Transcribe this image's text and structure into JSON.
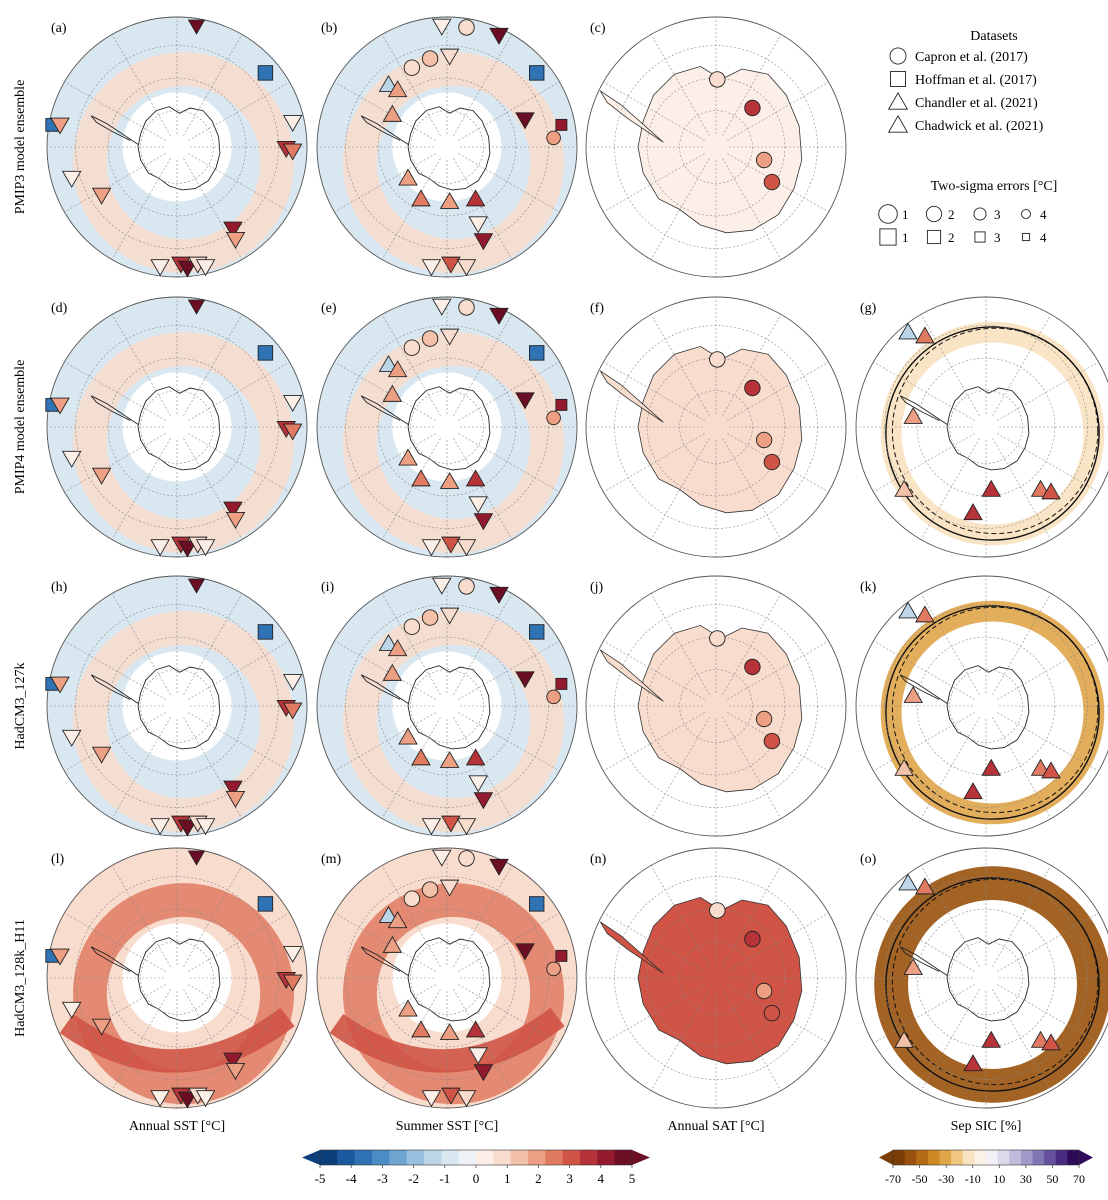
{
  "figure": {
    "row_labels": [
      "PMIP3 model ensemble",
      "PMIP4 model ensemble",
      "HadCM3_127k",
      "HadCM3_128k_H11"
    ],
    "column_labels": [
      "Annual SST [°C]",
      "Summer SST [°C]",
      "Annual SAT [°C]",
      "Sep SIC [%]"
    ],
    "panel_letters": [
      "(a)",
      "(b)",
      "(c)",
      "(d)",
      "(e)",
      "(f)",
      "(g)",
      "(h)",
      "(i)",
      "(j)",
      "(k)",
      "(l)",
      "(m)",
      "(n)",
      "(o)"
    ]
  },
  "legend": {
    "title": "Datasets",
    "entries": [
      {
        "shape": "circle",
        "label": "Capron et al. (2017)"
      },
      {
        "shape": "square",
        "label": "Hoffman et al. (2017)"
      },
      {
        "shape": "triangle-down",
        "label": "Chandler et al. (2021)"
      },
      {
        "shape": "triangle-up",
        "label": "Chadwick et al. (2021)"
      }
    ],
    "errors_title": "Two-sigma errors [°C]",
    "error_values": [
      "1",
      "2",
      "3",
      "4"
    ]
  },
  "colorbars": {
    "temperature": {
      "ticks": [
        "-5",
        "-4",
        "-3",
        "-2",
        "-1",
        "0",
        "1",
        "2",
        "3",
        "4",
        "5"
      ],
      "colors": [
        "#0c3f7a",
        "#1b5a9e",
        "#2f73b5",
        "#4a8cc4",
        "#6ea6d1",
        "#97c0de",
        "#bcd6e8",
        "#d9e7f1",
        "#eef2f6",
        "#fbefe8",
        "#f8dccd",
        "#f3c1a7",
        "#ec9f82",
        "#e07a61",
        "#cf5446",
        "#b7333a",
        "#93192e",
        "#6b0d24"
      ]
    },
    "sic": {
      "ticks": [
        "-70",
        "-50",
        "-30",
        "-10",
        "10",
        "30",
        "50",
        "70"
      ],
      "colors": [
        "#7a3d06",
        "#98520d",
        "#b46b16",
        "#cd8723",
        "#e0a549",
        "#f0c680",
        "#f8e2bf",
        "#fbf1e4",
        "#f3f0f6",
        "#dcd9ea",
        "#c0bcdc",
        "#a09ac8",
        "#8176b4",
        "#64509c",
        "#492c82",
        "#2d0b59"
      ]
    }
  },
  "chart_data": {
    "type": "polar-stereographic-maps",
    "rows": [
      "PMIP3 model ensemble",
      "PMIP4 model ensemble",
      "HadCM3_127k",
      "HadCM3_128k_H11"
    ],
    "columns": [
      "Annual SST [°C]",
      "Summer SST [°C]",
      "Annual SAT [°C]",
      "Sep SIC [%]"
    ],
    "temperature_range": [
      -5,
      5
    ],
    "sic_range": [
      -70,
      70
    ],
    "panels": [
      {
        "id": "(a)",
        "row": 0,
        "col": 0,
        "field": "annual_sst",
        "base_anomaly": 0.5
      },
      {
        "id": "(b)",
        "row": 0,
        "col": 1,
        "field": "summer_sst",
        "base_anomaly": 0.4
      },
      {
        "id": "(c)",
        "row": 0,
        "col": 2,
        "field": "annual_sat",
        "base_anomaly": 0.3
      },
      {
        "id": "(d)",
        "row": 1,
        "col": 0,
        "field": "annual_sst",
        "base_anomaly": 0.3
      },
      {
        "id": "(e)",
        "row": 1,
        "col": 1,
        "field": "summer_sst",
        "base_anomaly": 0.2
      },
      {
        "id": "(f)",
        "row": 1,
        "col": 2,
        "field": "annual_sat",
        "base_anomaly": 0.8
      },
      {
        "id": "(g)",
        "row": 1,
        "col": 3,
        "field": "sep_sic",
        "base_anomaly": -15
      },
      {
        "id": "(h)",
        "row": 2,
        "col": 0,
        "field": "annual_sst",
        "base_anomaly": 0.4
      },
      {
        "id": "(i)",
        "row": 2,
        "col": 1,
        "field": "summer_sst",
        "base_anomaly": 0.4
      },
      {
        "id": "(j)",
        "row": 2,
        "col": 2,
        "field": "annual_sat",
        "base_anomaly": 0.6
      },
      {
        "id": "(k)",
        "row": 2,
        "col": 3,
        "field": "sep_sic",
        "base_anomaly": -30
      },
      {
        "id": "(l)",
        "row": 3,
        "col": 0,
        "field": "annual_sst",
        "base_anomaly": 2.0
      },
      {
        "id": "(m)",
        "row": 3,
        "col": 1,
        "field": "summer_sst",
        "base_anomaly": 2.0
      },
      {
        "id": "(n)",
        "row": 3,
        "col": 2,
        "field": "annual_sat",
        "base_anomaly": 3.2
      },
      {
        "id": "(o)",
        "row": 3,
        "col": 3,
        "field": "sep_sic",
        "base_anomaly": -60
      }
    ],
    "site_anomalies": {
      "capron_annual_sat": [
        1.0,
        3.0,
        2.0,
        3.0
      ],
      "chandler_summer_sst": [
        5.0,
        4.0,
        2.0,
        1.0,
        3.0,
        2.5,
        1.5,
        4.5
      ],
      "chadwick_summer_sst": [
        -1.5,
        2.0,
        2.0,
        1.0,
        3.0,
        2.5,
        1.5
      ],
      "hoffman_sst": [
        -4.0,
        -3.5,
        5.0,
        4.0
      ]
    }
  }
}
